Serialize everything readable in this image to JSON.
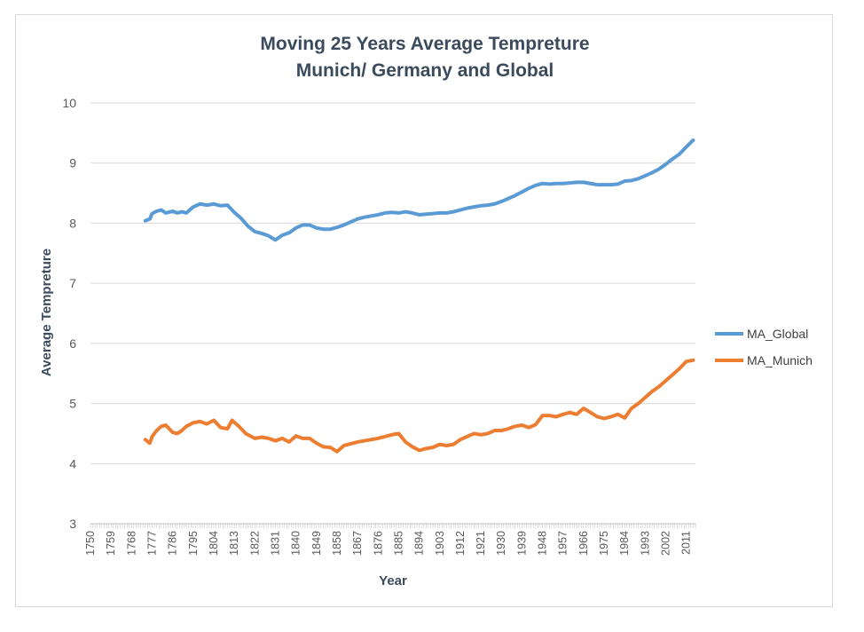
{
  "chart_data": {
    "type": "line",
    "title_lines": [
      "Moving 25 Years Average Tempreture",
      "Munich/ Germany and Global"
    ],
    "xlabel": "Year",
    "ylabel": "Average Tempreture",
    "ylim": [
      3,
      10
    ],
    "yticks": [
      3,
      4,
      5,
      6,
      7,
      8,
      9,
      10
    ],
    "xlim": [
      1750,
      2015
    ],
    "xticks": [
      1750,
      1759,
      1768,
      1777,
      1786,
      1795,
      1804,
      1813,
      1822,
      1831,
      1840,
      1849,
      1858,
      1867,
      1876,
      1885,
      1894,
      1903,
      1912,
      1921,
      1930,
      1939,
      1948,
      1957,
      1966,
      1975,
      1984,
      1993,
      2002,
      2011
    ],
    "grid": "horizontal",
    "legend_position": "right",
    "series": [
      {
        "name": "MA_Global",
        "color": "#5b9bd5",
        "x": [
          1774,
          1776,
          1777,
          1779,
          1781,
          1783,
          1786,
          1788,
          1790,
          1792,
          1795,
          1798,
          1801,
          1804,
          1807,
          1810,
          1813,
          1816,
          1819,
          1822,
          1825,
          1828,
          1831,
          1834,
          1837,
          1840,
          1843,
          1846,
          1849,
          1852,
          1855,
          1858,
          1861,
          1864,
          1867,
          1870,
          1873,
          1876,
          1879,
          1882,
          1885,
          1888,
          1891,
          1894,
          1897,
          1900,
          1903,
          1906,
          1909,
          1912,
          1915,
          1918,
          1921,
          1924,
          1927,
          1930,
          1933,
          1936,
          1939,
          1942,
          1945,
          1948,
          1951,
          1954,
          1957,
          1960,
          1963,
          1966,
          1969,
          1972,
          1975,
          1978,
          1981,
          1984,
          1987,
          1990,
          1993,
          1996,
          1999,
          2002,
          2005,
          2008,
          2011,
          2014
        ],
        "values": [
          8.04,
          8.07,
          8.16,
          8.2,
          8.22,
          8.17,
          8.2,
          8.17,
          8.19,
          8.17,
          8.27,
          8.32,
          8.3,
          8.32,
          8.29,
          8.3,
          8.18,
          8.08,
          7.95,
          7.86,
          7.83,
          7.79,
          7.72,
          7.8,
          7.84,
          7.92,
          7.97,
          7.97,
          7.92,
          7.9,
          7.9,
          7.93,
          7.97,
          8.02,
          8.07,
          8.1,
          8.12,
          8.14,
          8.17,
          8.18,
          8.17,
          8.19,
          8.17,
          8.14,
          8.15,
          8.16,
          8.17,
          8.17,
          8.19,
          8.22,
          8.25,
          8.27,
          8.29,
          8.3,
          8.32,
          8.36,
          8.41,
          8.46,
          8.52,
          8.58,
          8.63,
          8.66,
          8.65,
          8.66,
          8.66,
          8.67,
          8.68,
          8.68,
          8.66,
          8.64,
          8.64,
          8.64,
          8.65,
          8.7,
          8.71,
          8.74,
          8.79,
          8.84,
          8.9,
          8.98,
          9.07,
          9.15,
          9.27,
          9.38
        ]
      },
      {
        "name": "MA_Munich",
        "color": "#ed7d31",
        "x": [
          1774,
          1776,
          1777,
          1779,
          1781,
          1783,
          1786,
          1788,
          1790,
          1792,
          1795,
          1798,
          1801,
          1804,
          1807,
          1810,
          1812,
          1815,
          1818,
          1822,
          1825,
          1828,
          1831,
          1834,
          1837,
          1840,
          1843,
          1846,
          1849,
          1852,
          1855,
          1858,
          1861,
          1864,
          1867,
          1870,
          1873,
          1876,
          1879,
          1882,
          1885,
          1888,
          1891,
          1894,
          1897,
          1900,
          1903,
          1906,
          1909,
          1912,
          1915,
          1918,
          1921,
          1924,
          1927,
          1930,
          1933,
          1936,
          1939,
          1942,
          1945,
          1948,
          1951,
          1954,
          1957,
          1960,
          1963,
          1966,
          1969,
          1972,
          1975,
          1978,
          1981,
          1984,
          1987,
          1990,
          1993,
          1996,
          1999,
          2002,
          2005,
          2008,
          2011,
          2014
        ],
        "values": [
          4.4,
          4.34,
          4.45,
          4.55,
          4.62,
          4.64,
          4.52,
          4.5,
          4.55,
          4.62,
          4.68,
          4.7,
          4.66,
          4.72,
          4.6,
          4.58,
          4.72,
          4.62,
          4.5,
          4.42,
          4.44,
          4.42,
          4.38,
          4.42,
          4.36,
          4.46,
          4.42,
          4.42,
          4.34,
          4.28,
          4.27,
          4.2,
          4.3,
          4.33,
          4.36,
          4.38,
          4.4,
          4.42,
          4.45,
          4.48,
          4.5,
          4.36,
          4.28,
          4.22,
          4.25,
          4.27,
          4.32,
          4.3,
          4.32,
          4.4,
          4.45,
          4.5,
          4.48,
          4.5,
          4.55,
          4.55,
          4.58,
          4.62,
          4.64,
          4.6,
          4.65,
          4.8,
          4.8,
          4.78,
          4.82,
          4.85,
          4.82,
          4.92,
          4.85,
          4.78,
          4.75,
          4.78,
          4.82,
          4.76,
          4.92,
          5.0,
          5.1,
          5.2,
          5.28,
          5.38,
          5.48,
          5.58,
          5.7,
          5.72
        ]
      }
    ]
  }
}
